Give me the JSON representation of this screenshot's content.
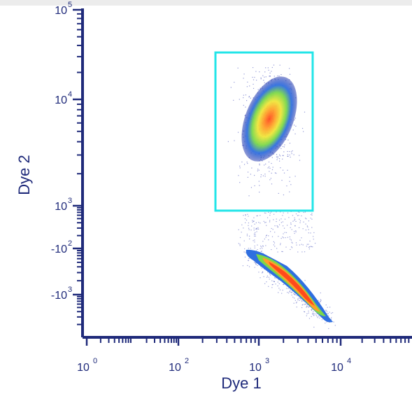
{
  "chart_data": {
    "type": "scatter",
    "title": "",
    "xlabel": "Dye 1",
    "ylabel": "Dye 2",
    "x_scale": "log",
    "y_scale": "biexponential",
    "grid": false,
    "x_ticks": [
      {
        "base": "10",
        "exp": "0"
      },
      {
        "base": "10",
        "exp": "2"
      },
      {
        "base": "10",
        "exp": "3"
      },
      {
        "base": "10",
        "exp": "4"
      }
    ],
    "y_ticks": [
      {
        "base": "10",
        "exp": "5"
      },
      {
        "base": "10",
        "exp": "4"
      },
      {
        "base": "10",
        "exp": "3"
      },
      {
        "base": "-10",
        "exp": "2"
      },
      {
        "base": "-10",
        "exp": "3"
      }
    ],
    "gate": {
      "shape": "rectangle",
      "x_range": [
        300,
        4500
      ],
      "y_range": [
        850,
        35000
      ],
      "color": "#22e5e8"
    },
    "populations": [
      {
        "label": "",
        "center_x": 1800,
        "center_y": 6500,
        "shape": "ellipse",
        "events": "dense"
      },
      {
        "label": "",
        "x_from": 700,
        "x_to": 7000,
        "y_from": -150,
        "y_to": -1800,
        "shape": "streak",
        "events": "dense"
      }
    ],
    "density_colors": [
      "#1a2ea8",
      "#2f6fe0",
      "#34c9b0",
      "#7bd84a",
      "#f0e63a",
      "#ff9f2a",
      "#ff4a1c"
    ],
    "axis_color": "#1f2a7a"
  }
}
